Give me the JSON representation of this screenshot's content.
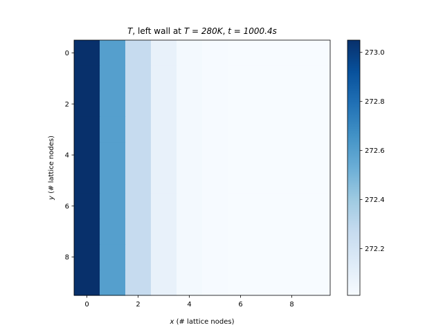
{
  "chart_data": {
    "type": "heatmap",
    "title": {
      "label": "T",
      "middle": ", left wall at ",
      "wall_temp": "T = 280K",
      "sep": ", ",
      "time": "t = 1000.4s"
    },
    "xlabel": {
      "var": "x",
      "rest": " (# lattice nodes)"
    },
    "ylabel": {
      "var": "y",
      "rest": " (# lattice nodes)"
    },
    "x_ticks": [
      "0",
      "2",
      "4",
      "6",
      "8"
    ],
    "y_ticks": [
      "0",
      "2",
      "4",
      "6",
      "8"
    ],
    "colorbar_ticks": [
      "272.2",
      "272.4",
      "272.6",
      "272.8",
      "273.0"
    ],
    "colorbar_tick_values": [
      272.2,
      272.4,
      272.6,
      272.8,
      273.0
    ],
    "colormap": "Blues",
    "vmin": 272.01,
    "vmax": 273.05,
    "grid": false,
    "n_x": 10,
    "n_y": 10,
    "column_values": [
      273.05,
      272.6,
      272.27,
      272.09,
      272.03,
      272.015,
      272.012,
      272.011,
      272.01,
      272.01
    ]
  }
}
